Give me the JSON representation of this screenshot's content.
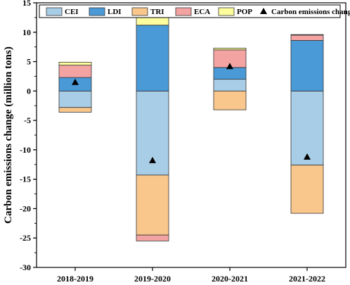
{
  "chart_data": {
    "type": "bar",
    "stacked": true,
    "categories": [
      "2018-2019",
      "2019-2020",
      "2020-2021",
      "2021-2022"
    ],
    "ylabel": "Carbon emissions change (million tons)",
    "ylim": [
      -30,
      15
    ],
    "yticks": [
      15,
      10,
      5,
      0,
      -5,
      -10,
      -15,
      -20,
      -25,
      -30
    ],
    "grid": false,
    "legend_position": "top",
    "series": [
      {
        "name": "CEI",
        "color": "#a8cde7",
        "values": [
          -2.8,
          -14.3,
          2.0,
          -12.6
        ]
      },
      {
        "name": "LDI",
        "color": "#4a9ad8",
        "values": [
          2.3,
          11.2,
          2.0,
          8.6
        ]
      },
      {
        "name": "TRI",
        "color": "#f9c68c",
        "values": [
          -0.8,
          -10.2,
          -3.2,
          -8.2
        ]
      },
      {
        "name": "ECA",
        "color": "#f4a3a3",
        "values": [
          2.1,
          -1.0,
          3.0,
          0.9
        ]
      },
      {
        "name": "POP",
        "color": "#fdfd9e",
        "values": [
          0.5,
          2.3,
          0.3,
          0.1
        ]
      }
    ],
    "markers": {
      "name": "Carbon emissions change",
      "shape": "triangle",
      "color": "#000000",
      "values": [
        1.5,
        -11.8,
        4.2,
        -11.2
      ]
    }
  }
}
